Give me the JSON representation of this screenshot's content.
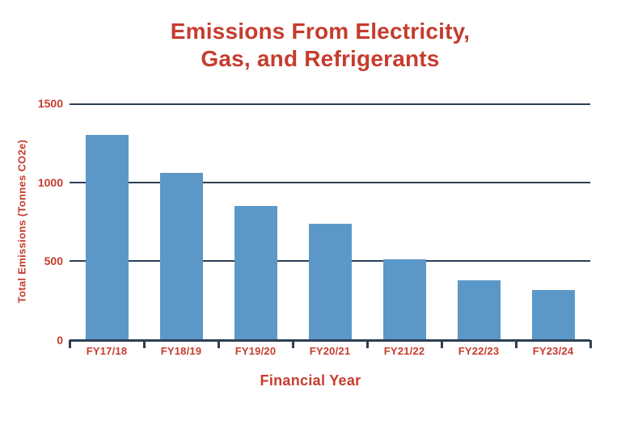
{
  "chart_data": {
    "type": "bar",
    "title": "Emissions From Electricity, Gas, and Refrigerants",
    "title_lines": [
      "Emissions From Electricity,",
      "Gas, and Refrigerants"
    ],
    "categories": [
      "FY17/18",
      "FY18/19",
      "FY19/20",
      "FY20/21",
      "FY21/22",
      "FY22/23",
      "FY23/24"
    ],
    "values": [
      1300,
      1060,
      850,
      735,
      510,
      380,
      320
    ],
    "xlabel": "Financial Year",
    "ylabel": "Total Emissions (Tonnes CO2e)",
    "ylim": [
      0,
      1500
    ],
    "yticks": [
      1500,
      1000,
      500,
      0
    ],
    "grid": true,
    "legend": false,
    "colors": {
      "bar": "#5B98C8",
      "grid": "#2C4055",
      "text": "#C63C2E",
      "background": "#FFFFFF"
    }
  }
}
